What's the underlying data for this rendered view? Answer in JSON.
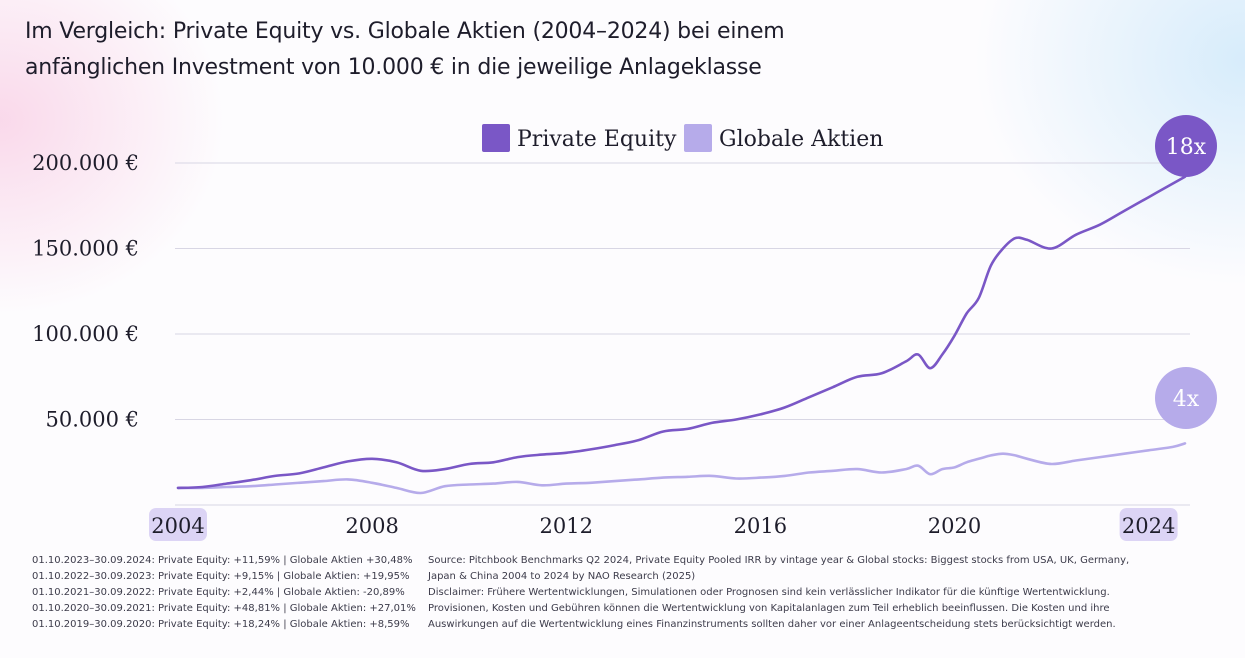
{
  "title": {
    "line1": "Im Vergleich: Private Equity vs. Globale Aktien (2004–2024) bei einem",
    "line2": "anfänglichen Investment von 10.000 € in die jeweilige Anlageklasse"
  },
  "chart_data": {
    "type": "line",
    "title": "Im Vergleich: Private Equity vs. Globale Aktien (2004–2024) bei einem anfänglichen Investment von 10.000 € in die jeweilige Anlageklasse",
    "xlim": [
      2004,
      2024.75
    ],
    "ylim": [
      0,
      200000
    ],
    "grid": true,
    "legend": "top-center",
    "y_ticks": [
      {
        "value": 50000,
        "label": "50.000 €"
      },
      {
        "value": 100000,
        "label": "100.000 €"
      },
      {
        "value": 150000,
        "label": "150.000 €"
      },
      {
        "value": 200000,
        "label": "200.000 €"
      }
    ],
    "x_ticks": [
      {
        "value": 2004,
        "label": "2004",
        "highlight": true
      },
      {
        "value": 2008,
        "label": "2008",
        "highlight": false
      },
      {
        "value": 2012,
        "label": "2012",
        "highlight": false
      },
      {
        "value": 2016,
        "label": "2016",
        "highlight": false
      },
      {
        "value": 2020,
        "label": "2020",
        "highlight": false
      },
      {
        "value": 2024,
        "label": "2024",
        "highlight": true
      }
    ],
    "series": [
      {
        "name": "Private Equity",
        "color": "#7a57c6",
        "end_badge": "18x",
        "x": [
          2004,
          2004.5,
          2005,
          2005.5,
          2006,
          2006.5,
          2007,
          2007.5,
          2008,
          2008.5,
          2009,
          2009.5,
          2010,
          2010.5,
          2011,
          2011.5,
          2012,
          2012.5,
          2013,
          2013.5,
          2014,
          2014.5,
          2015,
          2015.5,
          2016,
          2016.5,
          2017,
          2017.5,
          2018,
          2018.5,
          2019,
          2019.25,
          2019.5,
          2019.75,
          2020,
          2020.25,
          2020.5,
          2020.75,
          2021,
          2021.25,
          2021.5,
          2022,
          2022.5,
          2023,
          2023.5,
          2024,
          2024.5,
          2024.75
        ],
        "values": [
          10000,
          10500,
          12500,
          14500,
          17000,
          18500,
          22000,
          25500,
          27000,
          25000,
          20000,
          21000,
          24000,
          25000,
          28000,
          29500,
          30500,
          32500,
          35000,
          38000,
          43000,
          44500,
          48000,
          50000,
          53000,
          57000,
          63000,
          69000,
          75000,
          77000,
          84000,
          88000,
          80000,
          88000,
          99000,
          112000,
          121000,
          140000,
          150000,
          156000,
          155000,
          150000,
          158000,
          164000,
          172000,
          180000,
          188000,
          192000
        ]
      },
      {
        "name": "Globale Aktien",
        "color": "#b6abea",
        "end_badge": "4x",
        "x": [
          2004,
          2004.5,
          2005,
          2005.5,
          2006,
          2006.5,
          2007,
          2007.5,
          2008,
          2008.5,
          2009,
          2009.5,
          2010,
          2010.5,
          2011,
          2011.5,
          2012,
          2012.5,
          2013,
          2013.5,
          2014,
          2014.5,
          2015,
          2015.5,
          2016,
          2016.5,
          2017,
          2017.5,
          2018,
          2018.5,
          2019,
          2019.25,
          2019.5,
          2019.75,
          2020,
          2020.25,
          2020.5,
          2020.75,
          2021,
          2021.25,
          2021.5,
          2022,
          2022.5,
          2023,
          2023.5,
          2024,
          2024.5,
          2024.75
        ],
        "values": [
          10000,
          10000,
          10500,
          11000,
          12000,
          13000,
          14000,
          15000,
          13000,
          10000,
          7000,
          11000,
          12000,
          12500,
          13500,
          11500,
          12500,
          13000,
          14000,
          15000,
          16000,
          16500,
          17000,
          15500,
          16000,
          17000,
          19000,
          20000,
          21000,
          19000,
          21000,
          23000,
          18000,
          21000,
          22000,
          25000,
          27000,
          29000,
          30000,
          29000,
          27000,
          24000,
          26000,
          28000,
          30000,
          32000,
          34000,
          36000
        ]
      }
    ]
  },
  "footer": {
    "periods": [
      "01.10.2023–30.09.2024: Private Equity: +11,59% | Globale Aktien +30,48%",
      "01.10.2022–30.09.2023: Private Equity: +9,15% | Globale Aktien: +19,95%",
      "01.10.2021–30.09.2022: Private Equity: +2,44% | Globale Aktien: -20,89%",
      "01.10.2020–30.09.2021: Private Equity: +48,81% | Globale Aktien: +27,01%",
      "01.10.2019–30.09.2020: Private Equity: +18,24% | Globale Aktien: +8,59%"
    ],
    "notes": [
      "Source: Pitchbook Benchmarks Q2 2024, Private Equity Pooled IRR by vintage year & Global stocks: Biggest stocks from USA, UK, Germany,",
      "Japan & China 2004 to 2024 by NAO Research (2025)",
      "Disclaimer: Frühere Wertentwicklungen, Simulationen oder Prognosen sind kein verlässlicher Indikator für die künftige Wertentwicklung.",
      "Provisionen, Kosten und Gebühren können die Wertentwicklung von Kapitalanlagen zum Teil erheblich beeinflussen. Die Kosten und ihre",
      "Auswirkungen auf die Wertentwicklung eines Finanzinstruments sollten daher vor einer Anlageentscheidung stets berücksichtigt werden."
    ]
  }
}
